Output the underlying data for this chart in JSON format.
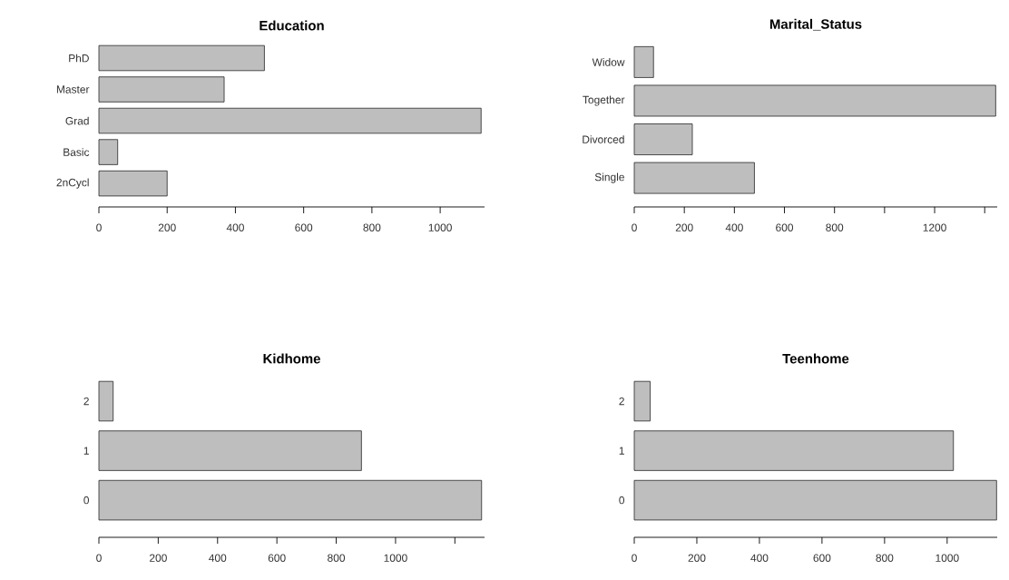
{
  "chart_data": [
    {
      "type": "bar",
      "orientation": "horizontal",
      "title": "Education",
      "categories": [
        "PhD",
        "Master",
        "Grad",
        "Basic",
        "2nCycl"
      ],
      "values": [
        485,
        367,
        1120,
        55,
        200
      ],
      "color": "#bebebe",
      "xlim": [
        0,
        1130
      ],
      "xticks": [
        0,
        200,
        400,
        600,
        800,
        1000
      ]
    },
    {
      "type": "bar",
      "orientation": "horizontal",
      "title": "Marital_Status",
      "categories": [
        "Widow",
        "Together",
        "Divorced",
        "Single"
      ],
      "values": [
        77,
        1444,
        232,
        480
      ],
      "color": "#bebebe",
      "xlim": [
        0,
        1450
      ],
      "xticks": [
        0,
        200,
        400,
        600,
        800,
        {
          "value": 1000,
          "label": null
        },
        1200,
        {
          "value": 1400,
          "label": null
        }
      ]
    },
    {
      "type": "bar",
      "orientation": "horizontal",
      "title": "Kidhome",
      "categories": [
        "2",
        "1",
        "0"
      ],
      "values": [
        48,
        885,
        1290
      ],
      "color": "#bebebe",
      "xlim": [
        0,
        1300
      ],
      "xticks": [
        0,
        200,
        400,
        600,
        800,
        1000,
        {
          "value": 1200,
          "label": null
        }
      ]
    },
    {
      "type": "bar",
      "orientation": "horizontal",
      "title": "Teenhome",
      "categories": [
        "2",
        "1",
        "0"
      ],
      "values": [
        51,
        1020,
        1158
      ],
      "color": "#bebebe",
      "xlim": [
        0,
        1160
      ],
      "xticks": [
        0,
        200,
        400,
        600,
        800,
        1000
      ]
    }
  ]
}
